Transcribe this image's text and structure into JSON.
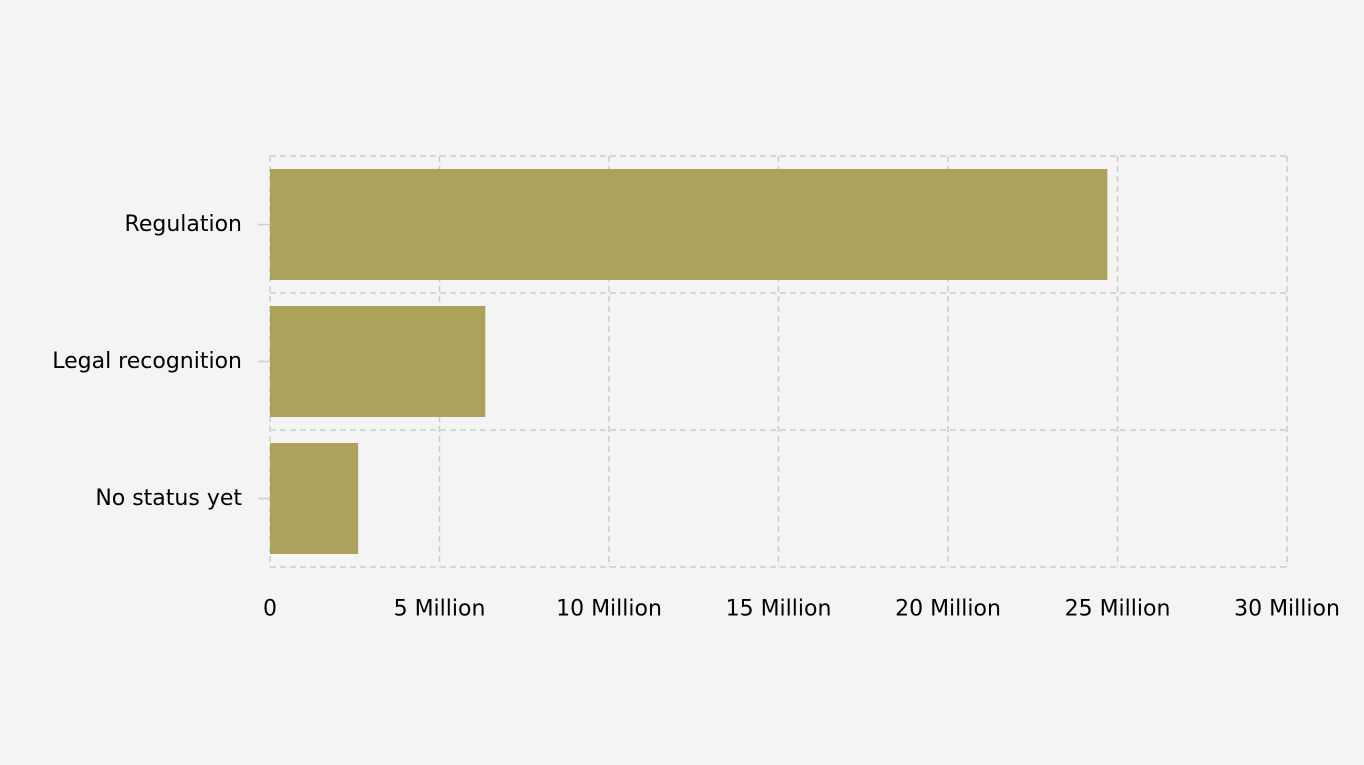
{
  "chart_data": {
    "type": "bar",
    "orientation": "horizontal",
    "title": "",
    "xlabel": "",
    "ylabel": "",
    "categories": [
      "Regulation",
      "Legal recognition",
      "No status yet"
    ],
    "values": [
      24700000,
      6350000,
      2600000
    ],
    "xlim": [
      0,
      30000000
    ],
    "x_ticks": [
      0,
      5000000,
      10000000,
      15000000,
      20000000,
      25000000,
      30000000
    ],
    "x_tick_labels": [
      "0",
      "5 Million",
      "10 Million",
      "15 Million",
      "20 Million",
      "25 Million",
      "30 Million"
    ],
    "grid": true,
    "legend": "none",
    "bar_color": "#ada25c",
    "grid_color": "#cccccc",
    "background_color": "#f4f4f4"
  }
}
